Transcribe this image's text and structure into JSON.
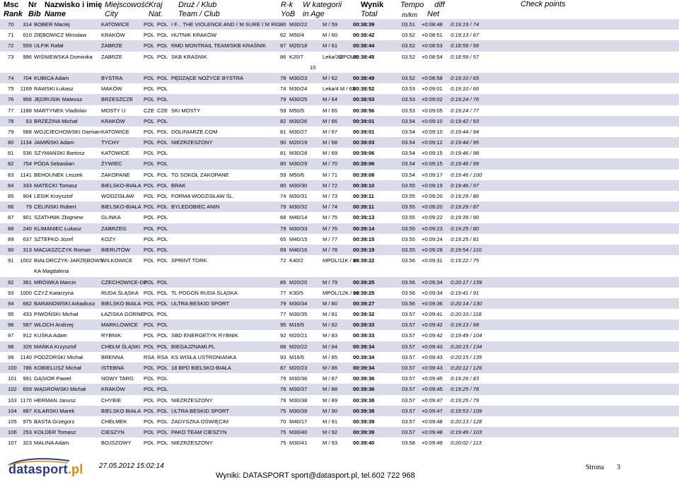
{
  "header": {
    "msc": "Msc",
    "rank": "Rank",
    "nr": "Nr",
    "bib": "Bib",
    "name_pl": "Nazwisko i imię",
    "name_en": "Name",
    "city_pl": "Miejscowość",
    "city_en": "City",
    "nat_pl": "Kraj",
    "nat_en": "Nat.",
    "team_pl": "Druż / Klub",
    "team_en": "Team / Club",
    "yob_pl": "R-k",
    "yob_en": "YoB",
    "cat_pl": "W kategorii",
    "cat_en": "in Age",
    "total_pl": "Wynik",
    "total_en": "Total",
    "tempo_pl": "Tempo",
    "tempo_en": "m/km",
    "diff_pl": "diff",
    "diff_en": "Net",
    "checkpoints": "Check points"
  },
  "rows": [
    {
      "rank": "70",
      "nr": "314",
      "name": "BOBER Maciej",
      "city": "KATOWICE",
      "nat1": "POL",
      "nat2": "POL",
      "team": "I F... THE VIOLENCE AND I`M SURE I`M RIG",
      "yob": "80",
      "cat": "M30/22",
      "cat2": "M / 59",
      "total": "00:38:39",
      "tempo": "03.51",
      "diff": "+0:08:48",
      "net": "0:19:19 / 74"
    },
    {
      "rank": "71",
      "nr": "610",
      "name": "ZIĘBOWICZ Mirosław",
      "city": "KRAKÓW",
      "nat1": "POL",
      "nat2": "POL",
      "team": "HUTNIK KRAKÓW",
      "yob": "62",
      "cat": "M50/4",
      "cat2": "M / 60",
      "total": "00:38:42",
      "tempo": "03.52",
      "diff": "+0:08:51",
      "net": "0:19:13 / 67"
    },
    {
      "rank": "72",
      "nr": "559",
      "name": "ULFIK Rafał",
      "city": "ZABRZE",
      "nat1": "POL",
      "nat2": "POL",
      "team": "RMD MONTRAIL TEAM/SKB KRAŚNIK",
      "yob": "87",
      "cat": "M20/18",
      "cat2": "M / 61",
      "total": "00:38:44",
      "tempo": "03.52",
      "diff": "+0:08:53",
      "net": "0:18:59 / 56"
    },
    {
      "rank": "73",
      "nr": "996",
      "name": "WIŚNIEWSKA Dominika",
      "city": "ZABRZE",
      "nat1": "POL",
      "nat2": "POL",
      "team": "SKB KRAŚNIK",
      "yob": "86",
      "cat": "K20/7",
      "cat2": "Leka/3MPOL/1",
      "cat3": "2",
      "sub10": "10",
      "total": "00:38:45",
      "tempo": "03.52",
      "diff": "+0:08:54",
      "net": "0:18:59 / 57",
      "tall": true
    },
    {
      "rank": "74",
      "nr": "704",
      "name": "KUBICA Adam",
      "city": "BYSTRA",
      "nat1": "POL",
      "nat2": "POL",
      "team": "PĘDZĄCE NOŻYCE BYSTRA",
      "yob": "78",
      "cat": "M30/23",
      "cat2": "M / 62",
      "total": "00:38:49",
      "tempo": "03.52",
      "diff": "+0:08:58",
      "net": "0:19:10 / 65"
    },
    {
      "rank": "75",
      "nr": "1169",
      "name": "RAWSKI Łukasz",
      "city": "MAKÓW",
      "nat1": "POL",
      "nat2": "POL",
      "team": "",
      "yob": "74",
      "cat": "M30/24",
      "cat2": "Leka/4   M / 63",
      "total": "00:38:52",
      "tempo": "03.53",
      "diff": "+0:09:01",
      "net": "0:19:10 / 66"
    },
    {
      "rank": "76",
      "nr": "956",
      "name": "JĘDRUSIK Mateusz",
      "city": "BRZESZCZE",
      "nat1": "POL",
      "nat2": "POL",
      "team": "",
      "yob": "79",
      "cat": "M30/25",
      "cat2": "M / 64",
      "total": "00:38:53",
      "tempo": "03.53",
      "diff": "+0:09:02",
      "net": "0:19:24 / 76"
    },
    {
      "rank": "77",
      "nr": "1188",
      "name": "MARTYNEK Vladislav",
      "city": "MOSTY U",
      "nat1": "CZE",
      "nat2": "CZE",
      "team": "SKI MOSTY",
      "yob": "59",
      "cat": "M50/5",
      "cat2": "M / 65",
      "total": "00:38:56",
      "tempo": "03.53",
      "diff": "+0:09:05",
      "net": "0:19:24 / 77"
    },
    {
      "rank": "78",
      "nr": "53",
      "name": "BRZEZINA Michał",
      "city": "KRAKÓW",
      "nat1": "POL",
      "nat2": "POL",
      "team": "",
      "yob": "82",
      "cat": "M30/26",
      "cat2": "M / 66",
      "total": "00:39:01",
      "tempo": "03.54",
      "diff": "+0:09:10",
      "net": "0:19:42 / 93"
    },
    {
      "rank": "79",
      "nr": "588",
      "name": "WOJCIECHOWSKI Damian",
      "city": "KATOWICE",
      "nat1": "POL",
      "nat2": "POL",
      "team": "DOLINIARZE.COM",
      "yob": "81",
      "cat": "M30/27",
      "cat2": "M / 67",
      "total": "00:39:01",
      "tempo": "03.54",
      "diff": "+0:09:10",
      "net": "0:19:44 / 94"
    },
    {
      "rank": "80",
      "nr": "1134",
      "name": "JAMIŃSKI Adam",
      "city": "TYCHY",
      "nat1": "POL",
      "nat2": "POL",
      "team": "NIEZRZESZONY",
      "yob": "90",
      "cat": "M20/19",
      "cat2": "M / 68",
      "total": "00:39:03",
      "tempo": "03.54",
      "diff": "+0:09:12",
      "net": "0:19:44 / 95"
    },
    {
      "rank": "81",
      "nr": "536",
      "name": "SZYMAŃSKI Bartosz",
      "city": "KATOWICE",
      "nat1": "POL",
      "nat2": "POL",
      "team": "",
      "yob": "81",
      "cat": "M30/28",
      "cat2": "M / 69",
      "total": "00:39:06",
      "tempo": "03.54",
      "diff": "+0:09:15",
      "net": "0:19:46 / 98"
    },
    {
      "rank": "82",
      "nr": "754",
      "name": "PÓDA Sebastian",
      "city": "ŻYWIEC",
      "nat1": "POL",
      "nat2": "POL",
      "team": "",
      "yob": "80",
      "cat": "M30/29",
      "cat2": "M / 70",
      "total": "00:39:06",
      "tempo": "03.54",
      "diff": "+0:09:15",
      "net": "0:19:46 / 99"
    },
    {
      "rank": "83",
      "nr": "1141",
      "name": "BEHOUNEK Leszek",
      "city": "ZAKOPANE",
      "nat1": "POL",
      "nat2": "POL",
      "team": "TG SOKÓŁ ZAKOPANE",
      "yob": "59",
      "cat": "M50/6",
      "cat2": "M / 71",
      "total": "00:39:08",
      "tempo": "03.54",
      "diff": "+0:09:17",
      "net": "0:19:46 / 100"
    },
    {
      "rank": "84",
      "nr": "333",
      "name": "MATECKI Tomasz",
      "city": "BIELSKO-BIAŁA",
      "nat1": "POL",
      "nat2": "POL",
      "team": "BRAK",
      "yob": "80",
      "cat": "M30/30",
      "cat2": "M / 72",
      "total": "00:39:10",
      "tempo": "03.55",
      "diff": "+0:09:19",
      "net": "0:19:46 / 97"
    },
    {
      "rank": "85",
      "nr": "904",
      "name": "LESIK Krzysztof",
      "city": "WODZISŁAW",
      "nat1": "POL",
      "nat2": "POL",
      "team": "FORMA WODZISŁAW ŚL.",
      "yob": "74",
      "cat": "M30/31",
      "cat2": "M / 73",
      "total": "00:39:11",
      "tempo": "03.55",
      "diff": "+0:09:20",
      "net": "0:19:29 / 86"
    },
    {
      "rank": "86",
      "nr": "79",
      "name": "CELIŃSKI Robert",
      "city": "BIELSKO-BIAŁA",
      "nat1": "POL",
      "nat2": "POL",
      "team": "BYLEDOBIEC ANIN",
      "yob": "79",
      "cat": "M30/32",
      "cat2": "M / 74",
      "total": "00:39:11",
      "tempo": "03.55",
      "diff": "+0:09:20",
      "net": "0:19:29 / 87"
    },
    {
      "rank": "87",
      "nr": "901",
      "name": "SZATHNIK Zbigniew",
      "city": "GLINKA",
      "nat1": "POL",
      "nat2": "POL",
      "team": "",
      "yob": "68",
      "cat": "M40/14",
      "cat2": "M / 75",
      "total": "00:39:13",
      "tempo": "03.55",
      "diff": "+0:09:22",
      "net": "0:19:39 / 90"
    },
    {
      "rank": "88",
      "nr": "240",
      "name": "KLIMANIEC Łukasz",
      "city": "ZABRZEG",
      "nat1": "POL",
      "nat2": "POL",
      "team": "",
      "yob": "79",
      "cat": "M30/33",
      "cat2": "M / 76",
      "total": "00:39:14",
      "tempo": "03.55",
      "diff": "+0:09:23",
      "net": "0:19:25 / 80"
    },
    {
      "rank": "89",
      "nr": "637",
      "name": "SZTEFKO Józef",
      "city": "KOZY",
      "nat1": "POL",
      "nat2": "POL",
      "team": "",
      "yob": "65",
      "cat": "M40/15",
      "cat2": "M / 77",
      "total": "00:39:15",
      "tempo": "03.55",
      "diff": "+0:09:24",
      "net": "0:19:25 / 81"
    },
    {
      "rank": "90",
      "nr": "313",
      "name": "MACIASZCZYK Roman",
      "city": "BIERUTÓW",
      "nat1": "POL",
      "nat2": "POL",
      "team": "",
      "yob": "69",
      "cat": "M40/16",
      "cat2": "M / 78",
      "total": "00:39:19",
      "tempo": "03.55",
      "diff": "+0:09:28",
      "net": "0:19:54 / 110"
    },
    {
      "rank": "91",
      "nr": "1002",
      "name": "BIAŁORCZYK-JARZĘBOWS",
      "sub": "KA Magdalena",
      "city": "WILKOWICE",
      "nat1": "POL",
      "nat2": "POL",
      "team": "SPRINT TORK",
      "yob": "72",
      "cat": "K40/2",
      "cat2": "MPOL/11K / 13",
      "total": "00:39:22",
      "tempo": "03.56",
      "diff": "+0:09:31",
      "net": "0:19:22 / 75",
      "tall": true
    },
    {
      "rank": "92",
      "nr": "361",
      "name": "MRÓWKA Marcin",
      "city": "CZECHOWICE-DZ",
      "nat1": "POL",
      "nat2": "POL",
      "team": "",
      "yob": "85",
      "cat": "M20/20",
      "cat2": "M / 79",
      "total": "00:39:25",
      "tempo": "03.56",
      "diff": "+0:09:34",
      "net": "0:20:17 / 139"
    },
    {
      "rank": "93",
      "nr": "1000",
      "name": "CZYŻ Katarzyna",
      "city": "RUDA ŚLĄSKA",
      "nat1": "POL",
      "nat2": "POL",
      "team": "TL POGOŃ RUDA ŚLĄSKA",
      "yob": "77",
      "cat": "K30/5",
      "cat2": "MPOL/12K / 14",
      "total": "00:39:25",
      "tempo": "03.56",
      "diff": "+0:09:34",
      "net": "0:19:41 / 91"
    },
    {
      "rank": "94",
      "nr": "662",
      "name": "BARANOWSKI Arkadiusz",
      "city": "BIELSKO BIAŁA",
      "nat1": "POL",
      "nat2": "POL",
      "team": "ULTRA BESKID SPORT",
      "yob": "79",
      "cat": "M30/34",
      "cat2": "M / 80",
      "total": "00:39:27",
      "tempo": "03.56",
      "diff": "+0:09:36",
      "net": "0:20:14 / 130"
    },
    {
      "rank": "95",
      "nr": "433",
      "name": "PIWOŃSKI Michał",
      "city": "ŁAZISKA GÓRNE",
      "nat1": "POL",
      "nat2": "POL",
      "team": "",
      "yob": "77",
      "cat": "M30/35",
      "cat2": "M / 81",
      "total": "00:39:32",
      "tempo": "03.57",
      "diff": "+0:09:41",
      "net": "0:20:10 / 118"
    },
    {
      "rank": "96",
      "nr": "587",
      "name": "WŁOCH Andrzej",
      "city": "MARKLOWICE",
      "nat1": "POL",
      "nat2": "POL",
      "team": "",
      "yob": "95",
      "cat": "M16/5",
      "cat2": "M / 82",
      "total": "00:39:33",
      "tempo": "03.57",
      "diff": "+0:09:42",
      "net": "0:19:13 / 68"
    },
    {
      "rank": "97",
      "nr": "912",
      "name": "KUŚKA Adam",
      "city": "RYBNIK",
      "nat1": "POL",
      "nat2": "POL",
      "team": "SBD ENERGETYK RYBNIK",
      "yob": "92",
      "cat": "M20/21",
      "cat2": "M / 83",
      "total": "00:39:33",
      "tempo": "03.57",
      "diff": "+0:09:42",
      "net": "0:19:49 / 104"
    },
    {
      "rank": "98",
      "nr": "326",
      "name": "MAŃKA Krzysztof",
      "city": "CHEŁM ŚLĄSKI",
      "nat1": "POL",
      "nat2": "POL",
      "team": "BIEGAJZNAMI.PL",
      "yob": "88",
      "cat": "M20/22",
      "cat2": "M / 84",
      "total": "00:39:34",
      "tempo": "03.57",
      "diff": "+0:09:43",
      "net": "0:20:15 / 134"
    },
    {
      "rank": "99",
      "nr": "1140",
      "name": "PODŻORSKI Michał",
      "city": "BRENNA",
      "nat1": "RSA",
      "nat2": "RSA",
      "team": "KS WISŁA USTRONIANKA",
      "yob": "93",
      "cat": "M16/6",
      "cat2": "M / 85",
      "total": "00:39:34",
      "tempo": "03.57",
      "diff": "+0:09:43",
      "net": "0:20:15 / 135"
    },
    {
      "rank": "100",
      "nr": "786",
      "name": "KOBIELUSZ Michał",
      "city": "ISTEBNA",
      "nat1": "POL",
      "nat2": "POL",
      "team": "18 BPD BIELSKO-BIAŁA",
      "yob": "87",
      "cat": "M20/23",
      "cat2": "M / 86",
      "total": "00:39:34",
      "tempo": "03.57",
      "diff": "+0:09:43",
      "net": "0:20:12 / 126"
    },
    {
      "rank": "101",
      "nr": "991",
      "name": "GĄSIOR Paweł",
      "city": "NOWY TARG",
      "nat1": "POL",
      "nat2": "POL",
      "team": "",
      "yob": "79",
      "cat": "M30/36",
      "cat2": "M / 87",
      "total": "00:39:36",
      "tempo": "03.57",
      "diff": "+0:09:45",
      "net": "0:19:26 / 83"
    },
    {
      "rank": "102",
      "nr": "659",
      "name": "WĄGROWSKI Michał",
      "city": "KRAKÓW",
      "nat1": "POL",
      "nat2": "POL",
      "team": "",
      "yob": "76",
      "cat": "M30/37",
      "cat2": "M / 88",
      "total": "00:39:36",
      "tempo": "03.57",
      "diff": "+0:09:45",
      "net": "0:19:25 / 78"
    },
    {
      "rank": "103",
      "nr": "1170",
      "name": "HERMAN Janusz",
      "city": "CHYBIE",
      "nat1": "POL",
      "nat2": "POL",
      "team": "NIEZRZESZONY",
      "yob": "79",
      "cat": "M30/38",
      "cat2": "M / 89",
      "total": "00:39:38",
      "tempo": "03.57",
      "diff": "+0:09:47",
      "net": "0:19:25 / 79"
    },
    {
      "rank": "104",
      "nr": "887",
      "name": "KILARSKI Marek",
      "city": "BIELSKO BIAŁA",
      "nat1": "POL",
      "nat2": "POL",
      "team": "ULTRA BESKID SPORT",
      "yob": "75",
      "cat": "M30/39",
      "cat2": "M / 90",
      "total": "00:39:38",
      "tempo": "03.57",
      "diff": "+0:09:47",
      "net": "0:19:53 / 109"
    },
    {
      "rank": "105",
      "nr": "975",
      "name": "BASTA Grzegorz",
      "city": "CHEŁMEK",
      "nat1": "POL",
      "nat2": "POL",
      "team": "ZADYSZKA OŚWIĘCIM",
      "yob": "70",
      "cat": "M40/17",
      "cat2": "M / 91",
      "total": "00:39:39",
      "tempo": "03.57",
      "diff": "+0:09:48",
      "net": "0:20:13 / 128"
    },
    {
      "rank": "106",
      "nr": "253",
      "name": "KOŁDER Tomasz",
      "city": "CIESZYN",
      "nat1": "POL",
      "nat2": "POL",
      "team": "PAKO TEAM CIESZYN",
      "yob": "75",
      "cat": "M30/40",
      "cat2": "M / 92",
      "total": "00:39:39",
      "tempo": "03.57",
      "diff": "+0:09:48",
      "net": "0:19:49 / 103"
    },
    {
      "rank": "107",
      "nr": "323",
      "name": "MALINA Adam",
      "city": "BOJSZOWY",
      "nat1": "POL",
      "nat2": "POL",
      "team": "NIEZRZESZONY",
      "yob": "75",
      "cat": "M30/41",
      "cat2": "M / 93",
      "total": "00:39:40",
      "tempo": "03.58",
      "diff": "+0:09:49",
      "net": "0:20:02 / 113"
    }
  ],
  "footer": {
    "logo_text": "datasport",
    "logo_suffix": ".pl",
    "date": "27.05.2012 15:02:14",
    "contact": "Wyniki: DATASPORT sport@datasport.pl, tel.602 722 968",
    "page_label": "Strona",
    "page_number": "3"
  }
}
